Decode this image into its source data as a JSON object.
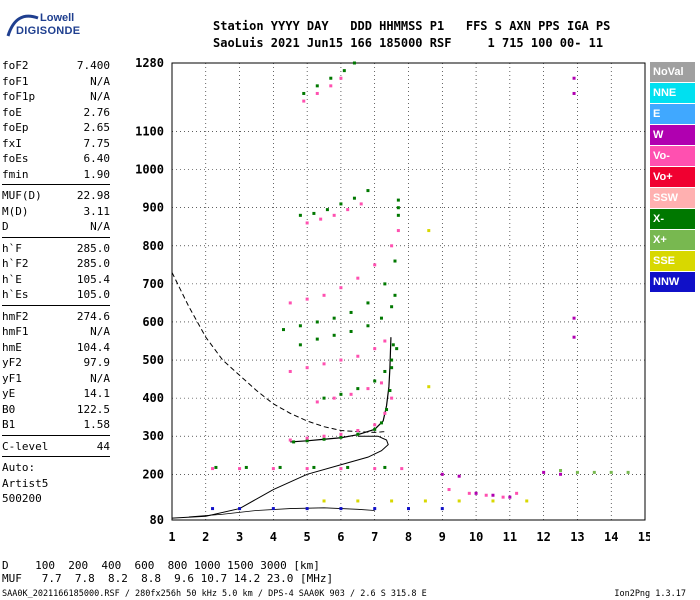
{
  "logo": {
    "line1": "Lowell",
    "line2": "DIGISONDE"
  },
  "header": {
    "line1": "Station YYYY DAY   DDD HHMMSS P1   FFS S AXN PPS IGA PS",
    "line2": "SaoLuis 2021 Jun15 166 185000 RSF     1 715 100 00- 11"
  },
  "params": {
    "group1": [
      {
        "k": "foF2",
        "v": "7.400"
      },
      {
        "k": "foF1",
        "v": "N/A"
      },
      {
        "k": "foF1p",
        "v": "N/A"
      },
      {
        "k": "foE",
        "v": "2.76"
      },
      {
        "k": "foEp",
        "v": "2.65"
      },
      {
        "k": "fxI",
        "v": "7.75"
      },
      {
        "k": "foEs",
        "v": "6.40"
      },
      {
        "k": "fmin",
        "v": "1.90"
      }
    ],
    "group2": [
      {
        "k": "MUF(D)",
        "v": "22.98"
      },
      {
        "k": "M(D)",
        "v": "3.11"
      },
      {
        "k": "D",
        "v": "N/A"
      }
    ],
    "group3": [
      {
        "k": "h`F",
        "v": "285.0"
      },
      {
        "k": "h`F2",
        "v": "285.0"
      },
      {
        "k": "h`E",
        "v": "105.4"
      },
      {
        "k": "h`Es",
        "v": "105.0"
      }
    ],
    "group4": [
      {
        "k": "hmF2",
        "v": "274.6"
      },
      {
        "k": "hmF1",
        "v": "N/A"
      },
      {
        "k": "hmE",
        "v": "104.4"
      },
      {
        "k": "yF2",
        "v": "97.9"
      },
      {
        "k": "yF1",
        "v": "N/A"
      },
      {
        "k": "yE",
        "v": "14.1"
      },
      {
        "k": "B0",
        "v": "122.5"
      },
      {
        "k": "B1",
        "v": "1.58"
      }
    ],
    "clevel": {
      "k": "C-level",
      "v": "44"
    },
    "auto": [
      "Auto:",
      "Artist5",
      "500200"
    ]
  },
  "legend": [
    {
      "label": "NoVal",
      "color": "#a0a0a0"
    },
    {
      "label": "NNE",
      "color": "#00e0f0"
    },
    {
      "label": "E",
      "color": "#40a8ff"
    },
    {
      "label": "W",
      "color": "#b000b0"
    },
    {
      "label": "Vo-",
      "color": "#ff50b0"
    },
    {
      "label": "Vo+",
      "color": "#f00030"
    },
    {
      "label": "SSW",
      "color": "#ffb0b0"
    },
    {
      "label": "X-",
      "color": "#007800"
    },
    {
      "label": "X+",
      "color": "#78b850"
    },
    {
      "label": "SSE",
      "color": "#d8d800"
    },
    {
      "label": "NNW",
      "color": "#1010c8"
    }
  ],
  "bottom": {
    "line1": "D    100  200  400  600  800 1000 1500 3000 [km]",
    "line2": "MUF   7.7  7.8  8.2  8.8  9.6 10.7 14.2 23.0 [MHz]"
  },
  "footer": {
    "left": "SAA0K_2021166185000.RSF / 280fx256h 50 kHz 5.0 km / DPS-4 SAA0K 903 / 2.6 S 315.8 E",
    "right": "Ion2Png 1.3.17"
  },
  "chart_data": {
    "type": "scatter",
    "x_ticks": [
      "1",
      "2",
      "3",
      "4",
      "5",
      "6",
      "7",
      "8",
      "9",
      "10",
      "11",
      "12",
      "13",
      "14",
      "15"
    ],
    "y_ticks": [
      "80",
      "200",
      "300",
      "400",
      "500",
      "600",
      "700",
      "800",
      "900",
      "1000",
      "1100",
      "1280"
    ],
    "xlim": [
      1,
      15
    ],
    "ylim": [
      80,
      1280
    ],
    "xlabel": "",
    "ylabel": "",
    "grid": true,
    "series": [
      {
        "color": "#007800",
        "points": [
          [
            4.6,
            285
          ],
          [
            5.0,
            288
          ],
          [
            5.5,
            292
          ],
          [
            6.0,
            297
          ],
          [
            6.5,
            305
          ],
          [
            7.0,
            318
          ],
          [
            7.2,
            335
          ],
          [
            7.35,
            370
          ],
          [
            7.45,
            420
          ],
          [
            7.5,
            480
          ],
          [
            7.55,
            540
          ]
        ]
      },
      {
        "color": "#ff50b0",
        "points": [
          [
            4.5,
            290
          ],
          [
            5.0,
            295
          ],
          [
            5.5,
            300
          ],
          [
            6.0,
            305
          ],
          [
            6.5,
            315
          ],
          [
            7.0,
            330
          ],
          [
            7.3,
            360
          ],
          [
            7.5,
            400
          ]
        ]
      },
      {
        "color": "#007800",
        "points": [
          [
            5.5,
            400
          ],
          [
            6.0,
            410
          ],
          [
            6.5,
            425
          ],
          [
            7.0,
            445
          ],
          [
            7.3,
            470
          ],
          [
            7.5,
            500
          ],
          [
            7.65,
            530
          ]
        ]
      },
      {
        "color": "#ff50b0",
        "points": [
          [
            5.3,
            390
          ],
          [
            5.8,
            400
          ],
          [
            6.3,
            410
          ],
          [
            6.8,
            425
          ],
          [
            7.2,
            440
          ]
        ]
      },
      {
        "color": "#007800",
        "points": [
          [
            4.8,
            540
          ],
          [
            5.3,
            555
          ],
          [
            5.8,
            565
          ],
          [
            6.3,
            575
          ],
          [
            6.8,
            590
          ],
          [
            7.2,
            610
          ],
          [
            7.5,
            640
          ],
          [
            7.6,
            670
          ]
        ]
      },
      {
        "color": "#ff50b0",
        "points": [
          [
            4.5,
            470
          ],
          [
            5.0,
            480
          ],
          [
            5.5,
            490
          ],
          [
            6.0,
            500
          ],
          [
            6.5,
            510
          ],
          [
            7.0,
            530
          ],
          [
            7.3,
            550
          ]
        ]
      },
      {
        "color": "#007800",
        "points": [
          [
            4.3,
            580
          ],
          [
            4.8,
            590
          ],
          [
            5.3,
            600
          ],
          [
            5.8,
            610
          ],
          [
            6.3,
            625
          ],
          [
            6.8,
            650
          ],
          [
            7.3,
            700
          ],
          [
            7.6,
            760
          ]
        ]
      },
      {
        "color": "#ff50b0",
        "points": [
          [
            4.5,
            650
          ],
          [
            5.0,
            660
          ],
          [
            5.5,
            670
          ],
          [
            6.0,
            690
          ],
          [
            6.5,
            715
          ],
          [
            7.0,
            750
          ],
          [
            7.5,
            800
          ],
          [
            7.7,
            840
          ]
        ]
      },
      {
        "color": "#007800",
        "points": [
          [
            4.8,
            880
          ],
          [
            5.2,
            885
          ],
          [
            5.6,
            895
          ],
          [
            6.0,
            910
          ],
          [
            6.4,
            925
          ],
          [
            6.8,
            945
          ]
        ]
      },
      {
        "color": "#ff50b0",
        "points": [
          [
            5.0,
            860
          ],
          [
            5.4,
            870
          ],
          [
            5.8,
            880
          ],
          [
            6.2,
            895
          ],
          [
            6.6,
            910
          ]
        ]
      },
      {
        "color": "#007800",
        "points": [
          [
            4.9,
            1200
          ],
          [
            5.3,
            1220
          ],
          [
            5.7,
            1240
          ],
          [
            6.1,
            1260
          ],
          [
            6.4,
            1280
          ]
        ]
      },
      {
        "color": "#ff50b0",
        "points": [
          [
            4.9,
            1180
          ],
          [
            5.3,
            1200
          ],
          [
            5.7,
            1220
          ],
          [
            6.0,
            1240
          ]
        ]
      },
      {
        "color": "#007800",
        "points": [
          [
            7.7,
            880
          ],
          [
            7.7,
            900
          ],
          [
            7.7,
            920
          ]
        ]
      },
      {
        "color": "#ff50b0",
        "points": [
          [
            2.2,
            215
          ],
          [
            3.0,
            215
          ],
          [
            4.0,
            215
          ],
          [
            5.0,
            215
          ],
          [
            6.0,
            215
          ],
          [
            7.0,
            215
          ],
          [
            7.8,
            215
          ]
        ]
      },
      {
        "color": "#007800",
        "points": [
          [
            2.3,
            218
          ],
          [
            3.2,
            218
          ],
          [
            4.2,
            218
          ],
          [
            5.2,
            218
          ],
          [
            6.2,
            218
          ],
          [
            7.3,
            218
          ]
        ]
      },
      {
        "color": "#b000b0",
        "points": [
          [
            9.0,
            200
          ],
          [
            9.5,
            195
          ],
          [
            10.0,
            150
          ],
          [
            10.5,
            145
          ],
          [
            11.0,
            140
          ],
          [
            12.0,
            205
          ],
          [
            12.5,
            200
          ]
        ]
      },
      {
        "color": "#ff50b0",
        "points": [
          [
            9.2,
            160
          ],
          [
            9.8,
            150
          ],
          [
            10.3,
            145
          ],
          [
            10.8,
            140
          ],
          [
            11.2,
            150
          ]
        ]
      },
      {
        "color": "#78b850",
        "points": [
          [
            12.5,
            210
          ],
          [
            13.0,
            205
          ],
          [
            13.5,
            205
          ],
          [
            14.0,
            205
          ],
          [
            14.5,
            205
          ]
        ]
      },
      {
        "color": "#d8d800",
        "points": [
          [
            5.5,
            130
          ],
          [
            6.5,
            130
          ],
          [
            7.5,
            130
          ],
          [
            8.5,
            130
          ],
          [
            9.5,
            130
          ],
          [
            10.5,
            130
          ],
          [
            11.5,
            130
          ],
          [
            8.6,
            430
          ],
          [
            8.6,
            840
          ]
        ]
      },
      {
        "color": "#1010c8",
        "points": [
          [
            2.2,
            110
          ],
          [
            3.0,
            110
          ],
          [
            4.0,
            110
          ],
          [
            5.0,
            110
          ],
          [
            6.0,
            110
          ],
          [
            7.0,
            110
          ],
          [
            8.0,
            110
          ],
          [
            9.0,
            110
          ]
        ]
      },
      {
        "color": "#b000b0",
        "points": [
          [
            12.9,
            560
          ],
          [
            12.9,
            610
          ],
          [
            12.9,
            1200
          ],
          [
            12.9,
            1240
          ]
        ]
      }
    ]
  }
}
